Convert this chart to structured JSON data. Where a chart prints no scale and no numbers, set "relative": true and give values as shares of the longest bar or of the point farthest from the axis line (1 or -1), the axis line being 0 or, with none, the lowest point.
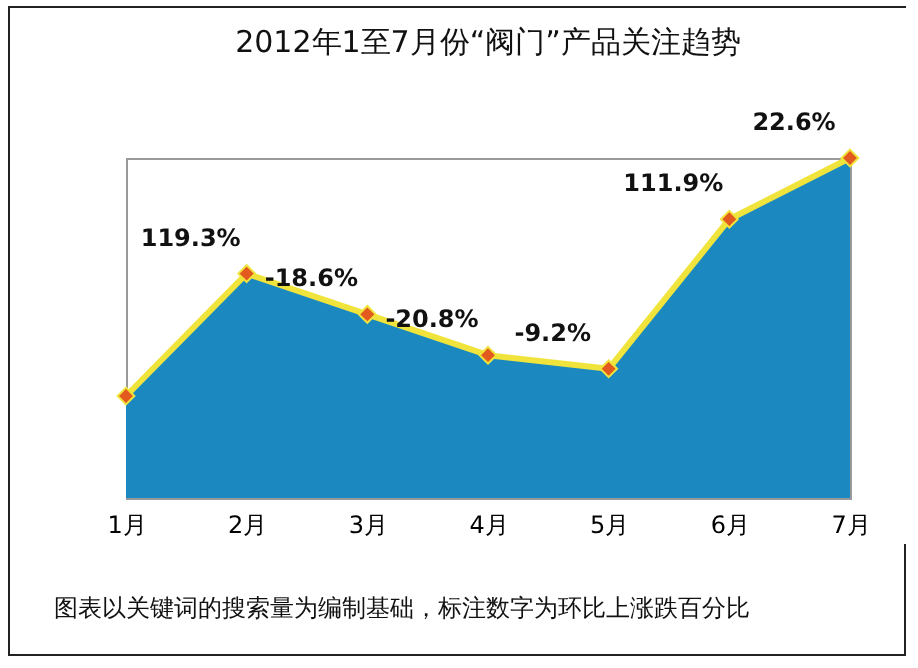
{
  "chart_data": {
    "type": "area",
    "title": "2012年1至7月份“阀门”产品关注趋势",
    "relative": true,
    "categories": [
      "1月",
      "2月",
      "3月",
      "4月",
      "5月",
      "6月",
      "7月"
    ],
    "series": [
      {
        "color": "#1b88c0",
        "values": [
          0.3,
          0.66,
          0.54,
          0.42,
          0.38,
          0.82,
          1
        ]
      },
      {
        "type": "line",
        "color": "#f0e43c",
        "marker": "diamond",
        "values": [
          0.3,
          0.66,
          0.54,
          0.42,
          0.38,
          0.82,
          1
        ]
      }
    ],
    "annotations": [
      {
        "text": "119.3%",
        "x": "2月",
        "y": 0.66
      },
      {
        "text": "-18.6%",
        "x": "3月",
        "y": 0.54
      },
      {
        "text": "-20.8%",
        "x": "4月",
        "y": 0.42
      },
      {
        "text": "-9.2%",
        "x": "5月",
        "y": 0.38
      },
      {
        "text": "111.9%",
        "x": "6月",
        "y": 0.82
      },
      {
        "text": "22.6%",
        "x": "7月",
        "y": 1
      },
      "图表以关键词的搜索量为编制基础，标注数字为环比上涨跌百分比"
    ]
  }
}
